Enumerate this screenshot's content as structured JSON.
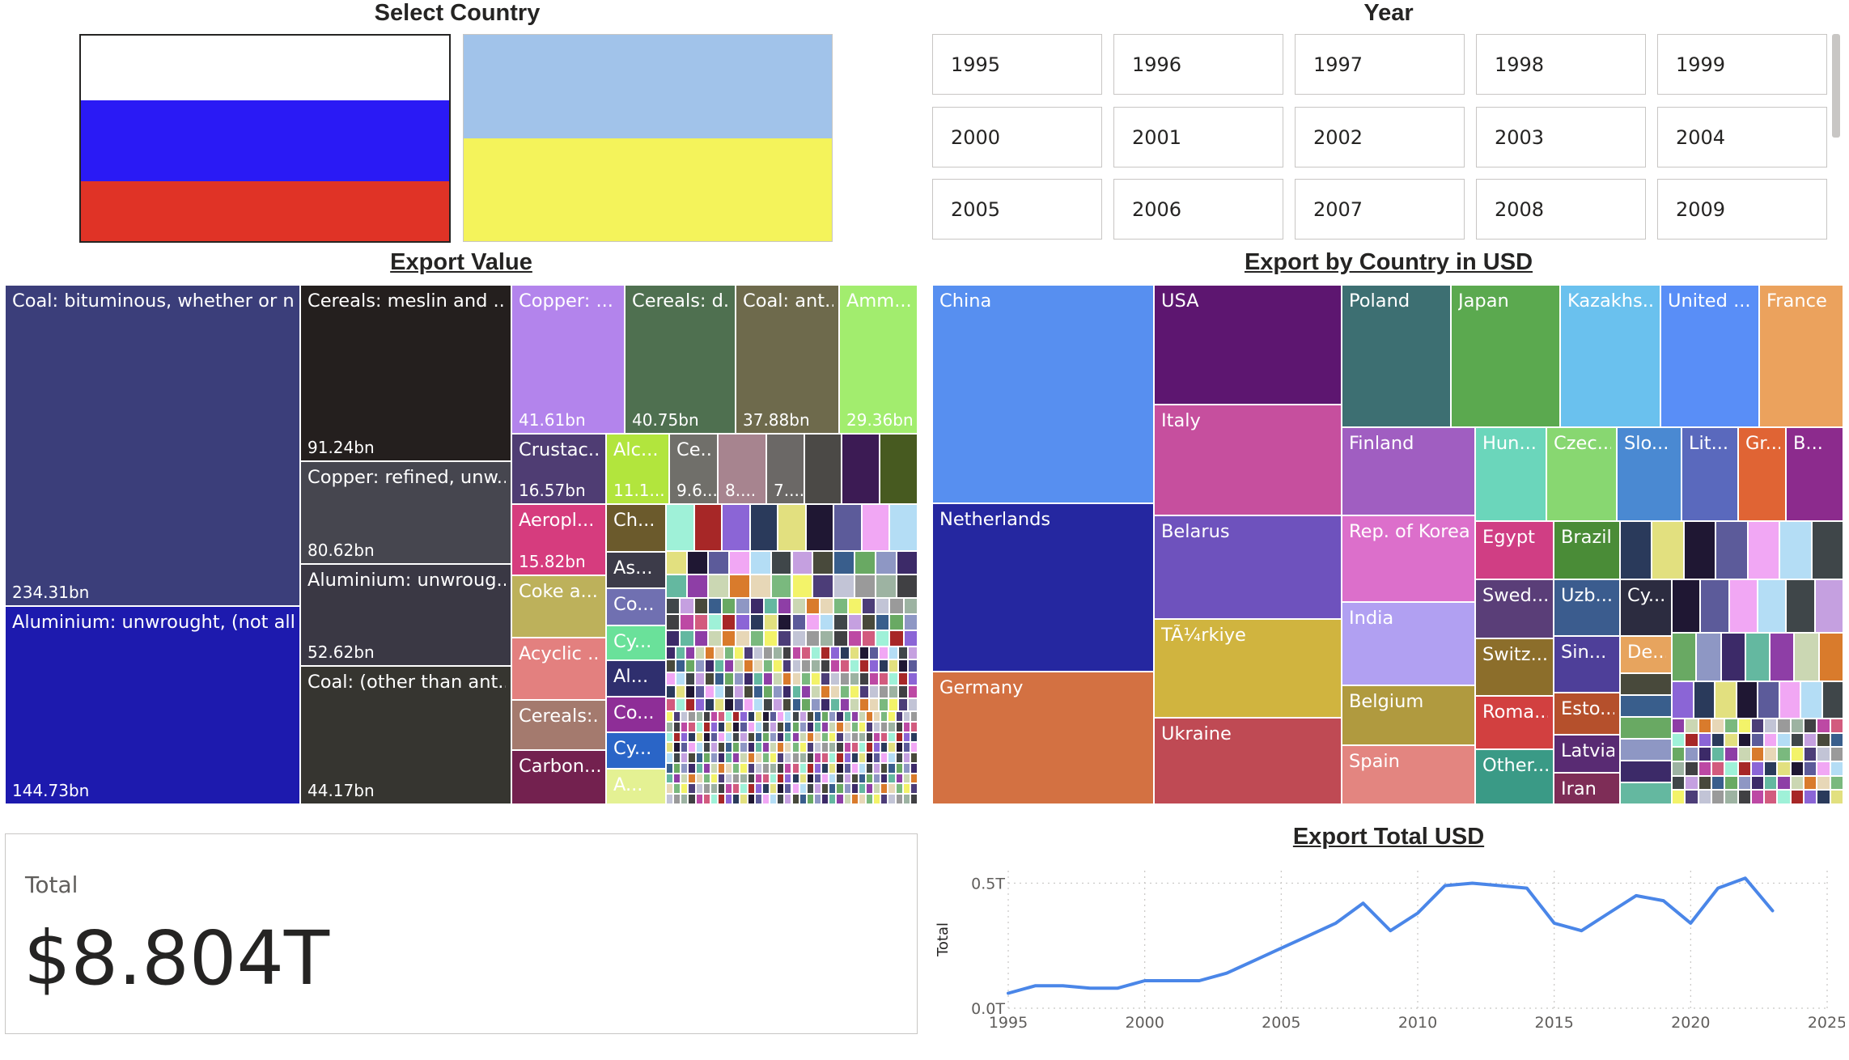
{
  "slicers": {
    "country": {
      "title": "Select Country",
      "flags": [
        {
          "name": "russia-flag-icon",
          "stripes": [
            "#ffffff",
            "#2a1af5",
            "#e03326"
          ]
        },
        {
          "name": "ukraine-flag-icon",
          "stripes": [
            "#a1c3ea",
            "#f4f35b"
          ]
        }
      ]
    },
    "year": {
      "title": "Year",
      "years": [
        "1995",
        "1996",
        "1997",
        "1998",
        "1999",
        "2000",
        "2001",
        "2002",
        "2003",
        "2004",
        "2005",
        "2006",
        "2007",
        "2008",
        "2009"
      ]
    }
  },
  "export_value": {
    "title": "Export Value",
    "labeled": [
      {
        "label": "Coal: bituminous, whether or n...",
        "value": "234.31bn",
        "color": "#3b3e7a"
      },
      {
        "label": "Aluminium: unwrought, (not all...",
        "value": "144.73bn",
        "color": "#1d1aae"
      },
      {
        "label": "Cereals: meslin and ...",
        "value": "91.24bn",
        "color": "#241f1e"
      },
      {
        "label": "Copper: refined, unw...",
        "value": "80.62bn",
        "color": "#46464f"
      },
      {
        "label": "Aluminium: unwroug...",
        "value": "52.62bn",
        "color": "#3a3844"
      },
      {
        "label": "Coal: (other than ant...",
        "value": "44.17bn",
        "color": "#363530"
      },
      {
        "label": "Copper: ...",
        "value": "41.61bn",
        "color": "#b384ec"
      },
      {
        "label": "Cereals: d...",
        "value": "40.75bn",
        "color": "#4f7050"
      },
      {
        "label": "Coal: ant...",
        "value": "37.88bn",
        "color": "#6e6a4c"
      },
      {
        "label": "Amm...",
        "value": "29.36bn",
        "color": "#a2ed6e"
      },
      {
        "label": "Crustac...",
        "value": "16.57bn",
        "color": "#4f3d73"
      },
      {
        "label": "Aeropl...",
        "value": "15.82bn",
        "color": "#d63c7e"
      },
      {
        "label": "Coke a...",
        "value": "",
        "color": "#bdb15b"
      },
      {
        "label": "Acyclic ...",
        "value": "",
        "color": "#e3807f"
      },
      {
        "label": "Cereals:...",
        "value": "",
        "color": "#a47a6e"
      },
      {
        "label": "Carbon...",
        "value": "",
        "color": "#73214f"
      },
      {
        "label": "Alc...",
        "value": "11.1...",
        "color": "#b2e53d"
      },
      {
        "label": "Ce...",
        "value": "9.6...",
        "color": "#706f6a"
      },
      {
        "label": "",
        "value": "8....",
        "color": "#a7848f"
      },
      {
        "label": "",
        "value": "7....",
        "color": "#6b6866"
      },
      {
        "label": "Ch...",
        "value": "",
        "color": "#6b5a2c"
      },
      {
        "label": "As...",
        "value": "",
        "color": "#3c3b49"
      },
      {
        "label": "Co...",
        "value": "",
        "color": "#7070b1"
      },
      {
        "label": "Cy...",
        "value": "",
        "color": "#6ae19a"
      },
      {
        "label": "Al...",
        "value": "",
        "color": "#2f2f6e"
      },
      {
        "label": "Co...",
        "value": "",
        "color": "#8e2e97"
      },
      {
        "label": "Cy...",
        "value": "",
        "color": "#2a65c7"
      },
      {
        "label": "A...",
        "value": "",
        "color": "#e4f193"
      }
    ]
  },
  "export_by_country": {
    "title": "Export by Country in USD",
    "labeled": [
      {
        "label": "China",
        "color": "#578ff0"
      },
      {
        "label": "Netherlands",
        "color": "#2527a0"
      },
      {
        "label": "Germany",
        "color": "#d37142"
      },
      {
        "label": "USA",
        "color": "#5d1670"
      },
      {
        "label": "Italy",
        "color": "#c64f9e"
      },
      {
        "label": "Belarus",
        "color": "#6e52bd"
      },
      {
        "label": "TÃ¼rkiye",
        "color": "#d0b43f"
      },
      {
        "label": "Ukraine",
        "color": "#bf4a54"
      },
      {
        "label": "Poland",
        "color": "#3d6f72"
      },
      {
        "label": "Japan",
        "color": "#5ba94f"
      },
      {
        "label": "Kazakhs...",
        "color": "#6ac1ee"
      },
      {
        "label": "United ...",
        "color": "#598ef7"
      },
      {
        "label": "France",
        "color": "#eba25d"
      },
      {
        "label": "Finland",
        "color": "#a05ec1"
      },
      {
        "label": "Rep. of Korea",
        "color": "#dc6fcb"
      },
      {
        "label": "India",
        "color": "#b1a0f2"
      },
      {
        "label": "Belgium",
        "color": "#b09a3f"
      },
      {
        "label": "Spain",
        "color": "#e38580"
      },
      {
        "label": "Hun...",
        "color": "#6bd6bb"
      },
      {
        "label": "Czec...",
        "color": "#88d771"
      },
      {
        "label": "Slo...",
        "color": "#4a89d2"
      },
      {
        "label": "Lit...",
        "color": "#5a69bd"
      },
      {
        "label": "Gr...",
        "color": "#e06434"
      },
      {
        "label": "B...",
        "color": "#8c2b8d"
      },
      {
        "label": "Egypt",
        "color": "#d03e84"
      },
      {
        "label": "Brazil",
        "color": "#4a8c37"
      },
      {
        "label": "Swed...",
        "color": "#5a3e78"
      },
      {
        "label": "Uzb...",
        "color": "#3b5c8e"
      },
      {
        "label": "Cy...",
        "color": "#2c2c40"
      },
      {
        "label": "Switz...",
        "color": "#8c6e2b"
      },
      {
        "label": "Sin...",
        "color": "#4e3f99"
      },
      {
        "label": "De...",
        "color": "#e7a45e"
      },
      {
        "label": "Roma...",
        "color": "#d24040"
      },
      {
        "label": "Esto...",
        "color": "#b5502c"
      },
      {
        "label": "Latvia",
        "color": "#592b73"
      },
      {
        "label": "Other...",
        "color": "#3a9a86"
      },
      {
        "label": "Iran",
        "color": "#7e2d57"
      }
    ]
  },
  "total_card": {
    "label": "Total",
    "value": "$8.804T"
  },
  "chart_data": {
    "type": "line",
    "title": "Export Total USD",
    "ylabel": "Total",
    "xlabel": "",
    "xlim": [
      1995,
      2025
    ],
    "ylim": [
      0,
      0.55
    ],
    "x_ticks": [
      "1995",
      "2000",
      "2005",
      "2010",
      "2015",
      "2020",
      "2025"
    ],
    "y_ticks": [
      {
        "v": 0.0,
        "label": "0.0T"
      },
      {
        "v": 0.5,
        "label": "0.5T"
      }
    ],
    "series": [
      {
        "color": "#4a86e8",
        "x": [
          1995,
          1996,
          1997,
          1998,
          1999,
          2000,
          2001,
          2002,
          2003,
          2004,
          2005,
          2006,
          2007,
          2008,
          2009,
          2010,
          2011,
          2012,
          2013,
          2014,
          2015,
          2016,
          2017,
          2018,
          2019,
          2020,
          2021,
          2022,
          2023
        ],
        "y": [
          0.06,
          0.09,
          0.09,
          0.08,
          0.08,
          0.11,
          0.11,
          0.11,
          0.14,
          0.19,
          0.24,
          0.29,
          0.34,
          0.42,
          0.31,
          0.38,
          0.49,
          0.5,
          0.49,
          0.48,
          0.34,
          0.31,
          0.38,
          0.45,
          0.43,
          0.34,
          0.48,
          0.52,
          0.39
        ]
      }
    ]
  }
}
